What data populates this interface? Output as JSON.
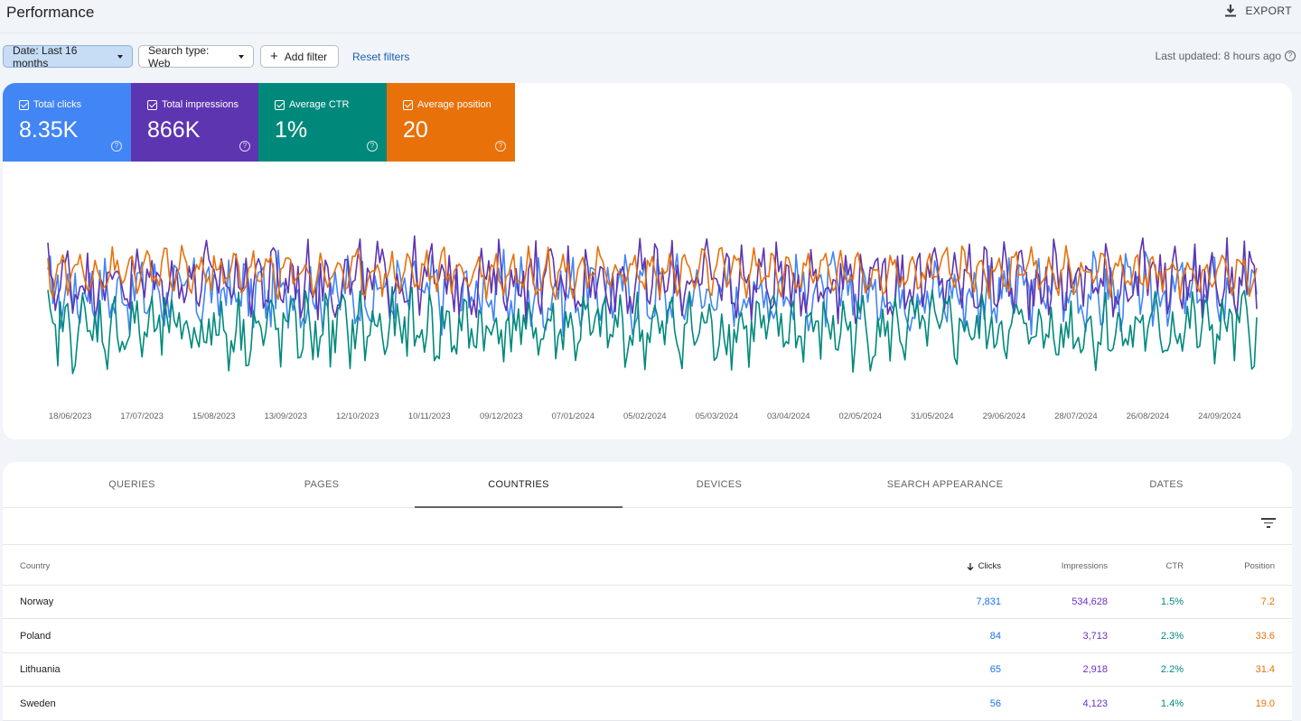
{
  "header": {
    "title": "Performance",
    "export_label": "EXPORT"
  },
  "filters": {
    "date": "Date: Last 16 months",
    "search_type": "Search type: Web",
    "add_filter": "Add filter",
    "reset": "Reset filters",
    "last_updated": "Last updated: 8 hours ago"
  },
  "metrics": [
    {
      "label": "Total clicks",
      "value": "8.35K",
      "color": "#4285f4",
      "checked": true
    },
    {
      "label": "Total impressions",
      "value": "866K",
      "color": "#5e35b1",
      "checked": true
    },
    {
      "label": "Average CTR",
      "value": "1%",
      "color": "#00897b",
      "checked": true
    },
    {
      "label": "Average position",
      "value": "20",
      "color": "#e8710a",
      "checked": true
    }
  ],
  "chart_data": {
    "type": "line",
    "x_ticks": [
      "18/06/2023",
      "17/07/2023",
      "15/08/2023",
      "13/09/2023",
      "12/10/2023",
      "10/11/2023",
      "09/12/2023",
      "07/01/2024",
      "05/02/2024",
      "05/03/2024",
      "03/04/2024",
      "02/05/2024",
      "31/05/2024",
      "29/06/2024",
      "28/07/2024",
      "26/08/2024",
      "24/09/2024"
    ],
    "x_start": "2023-06-09",
    "x_end": "2024-10-09",
    "series": [
      {
        "name": "Total clicks",
        "color": "#4285f4",
        "base": 0.55
      },
      {
        "name": "Total impressions",
        "color": "#5e35b1",
        "base": 0.62
      },
      {
        "name": "Average CTR",
        "color": "#00897b",
        "base": 0.35
      },
      {
        "name": "Average position",
        "color": "#e8710a",
        "base": 0.66
      }
    ],
    "grid": false,
    "legend": "none"
  },
  "tabs": [
    {
      "label": "QUERIES",
      "active": false
    },
    {
      "label": "PAGES",
      "active": false
    },
    {
      "label": "COUNTRIES",
      "active": true
    },
    {
      "label": "DEVICES",
      "active": false
    },
    {
      "label": "SEARCH APPEARANCE",
      "active": false
    },
    {
      "label": "DATES",
      "active": false
    }
  ],
  "table": {
    "columns": [
      "Country",
      "Clicks",
      "Impressions",
      "CTR",
      "Position"
    ],
    "rows": [
      {
        "country": "Norway",
        "clicks": "7,831",
        "impressions": "534,628",
        "ctr": "1.5%",
        "position": "7.2"
      },
      {
        "country": "Poland",
        "clicks": "84",
        "impressions": "3,713",
        "ctr": "2.3%",
        "position": "33.6"
      },
      {
        "country": "Lithuania",
        "clicks": "65",
        "impressions": "2,918",
        "ctr": "2.2%",
        "position": "31.4"
      },
      {
        "country": "Sweden",
        "clicks": "56",
        "impressions": "4,123",
        "ctr": "1.4%",
        "position": "19.0"
      }
    ]
  }
}
